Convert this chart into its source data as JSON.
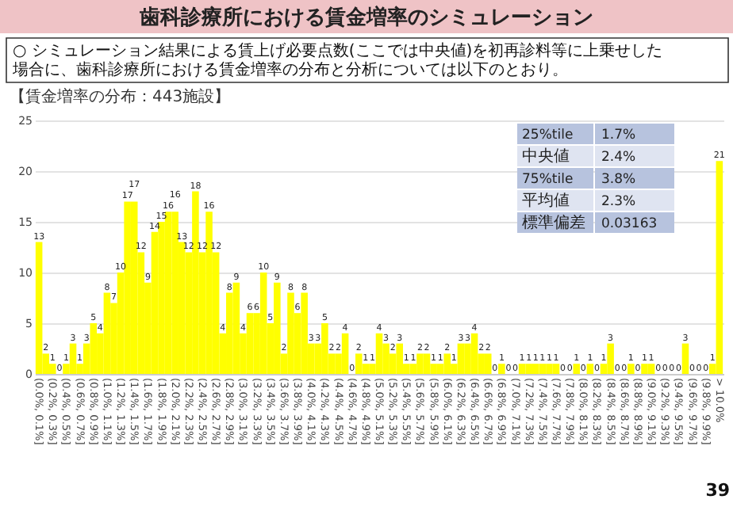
{
  "chart_data": {
    "type": "bar",
    "title": "歯科診療所における賃金増率のシミュレーション",
    "subtitle": "○ シミュレーション結果による賃上げ必要点数(ここでは中央値)を初再診料等に上乗せした場合に、歯科診療所における賃金増率の分布と分析については以下のとおり。",
    "annotations": [
      "【賃金増率の分布：443施設】",
      "39",
      "25%tile",
      "1.7%",
      "中央値",
      "2.4%",
      "75%tile",
      "3.8%",
      "平均値",
      "2.3%",
      "標準偏差",
      "0.03163"
    ],
    "categories": [
      "(0.0%, 0.1%]",
      null,
      "(0.2%, 0.3%]",
      null,
      "(0.4%, 0.5%]",
      null,
      "(0.6%, 0.7%]",
      null,
      "(0.8%, 0.9%]",
      null,
      "(1.0%, 1.1%]",
      null,
      "(1.2%, 1.3%]",
      null,
      "(1.4%, 1.5%]",
      null,
      "(1.6%, 1.7%]",
      null,
      "(1.8%, 1.9%]",
      null,
      "(2.0%, 2.1%]",
      null,
      "(2.2%, 2.3%]",
      null,
      "(2.4%, 2.5%]",
      null,
      "(2.6%, 2.7%]",
      null,
      "(2.8%, 2.9%]",
      null,
      "(3.0%, 3.1%]",
      null,
      "(3.2%, 3.3%]",
      null,
      "(3.4%, 3.5%]",
      null,
      "(3.6%, 3.7%]",
      null,
      "(3.8%, 3.9%]",
      null,
      "(4.0%, 4.1%]",
      null,
      "(4.2%, 4.3%]",
      null,
      "(4.4%, 4.5%]",
      null,
      "(4.6%, 4.7%]",
      null,
      "(4.8%, 4.9%]",
      null,
      "(5.0%, 5.1%]",
      null,
      "(5.2%, 5.3%]",
      null,
      "(5.4%, 5.5%]",
      null,
      "(5.6%, 5.7%]",
      null,
      "(5.8%, 5.9%]",
      null,
      "(6.0%, 6.1%]",
      null,
      "(6.2%, 6.3%]",
      null,
      "(6.4%, 6.5%]",
      null,
      "(6.6%, 6.7%]",
      null,
      "(6.8%, 6.9%]",
      null,
      "(7.0%, 7.1%]",
      null,
      "(7.2%, 7.3%]",
      null,
      "(7.4%, 7.5%]",
      null,
      "(7.6%, 7.7%]",
      null,
      "(7.8%, 7.9%]",
      null,
      "(8.0%, 8.1%]",
      null,
      "(8.2%, 8.3%]",
      null,
      "(8.4%, 8.5%]",
      null,
      "(8.6%, 8.7%]",
      null,
      "(8.8%, 8.9%]",
      null,
      "(9.0%, 9.1%]",
      null,
      "(9.2%, 9.3%]",
      null,
      "(9.4%, 9.5%]",
      null,
      "(9.6%, 9.7%]",
      null,
      "(9.8%, 9.9%]",
      null,
      "> 10.0%"
    ],
    "values": [
      13,
      2,
      1,
      0,
      1,
      3,
      1,
      3,
      5,
      4,
      8,
      7,
      10,
      17,
      17,
      12,
      9,
      14,
      15,
      16,
      16,
      13,
      12,
      18,
      12,
      16,
      12,
      4,
      8,
      9,
      4,
      6,
      6,
      10,
      5,
      9,
      2,
      8,
      6,
      8,
      3,
      3,
      5,
      2,
      2,
      4,
      0,
      2,
      1,
      1,
      4,
      3,
      2,
      3,
      1,
      1,
      2,
      2,
      1,
      1,
      2,
      1,
      3,
      3,
      4,
      2,
      2,
      0,
      1,
      0,
      0,
      1,
      1,
      1,
      1,
      1,
      1,
      0,
      0,
      1,
      0,
      1,
      0,
      1,
      3,
      0,
      0,
      1,
      0,
      1,
      1,
      0,
      0,
      0,
      0,
      3,
      0,
      0,
      0,
      1,
      21
    ],
    "color": "#ffff00",
    "data_labels": true,
    "ylim": [
      0,
      25
    ],
    "yticks": [
      0,
      5,
      10,
      15,
      20,
      25
    ],
    "grid": "y"
  }
}
